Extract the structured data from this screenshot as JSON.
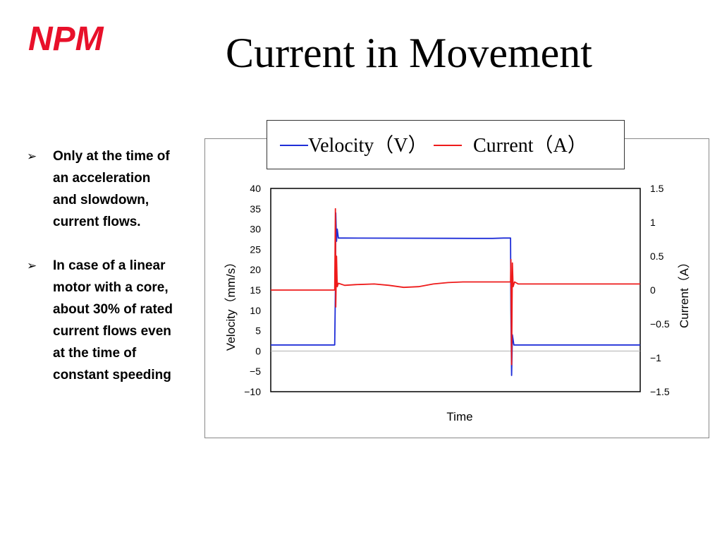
{
  "slide": {
    "logo": "NPM",
    "title": "Current in Movement",
    "bullets": [
      {
        "marker": "➢",
        "lines": [
          "Only at the time of",
          "an acceleration",
          "and slowdown,",
          "current flows."
        ]
      },
      {
        "marker": "➢",
        "lines": [
          "In case of a linear",
          "motor with a core,",
          "about 30% of rated",
          "current flows even",
          "at the time of",
          "constant speeding"
        ]
      }
    ]
  },
  "colors": {
    "logo": "#e8102a",
    "velocity": "#1f2ed8",
    "current": "#ee1b1b",
    "zero_line": "#b0b0b0"
  },
  "chart_data": {
    "type": "line",
    "xlabel": "Time",
    "ylabel": "Velocity（mm/s）",
    "y2label": "Current（A）",
    "ylim": [
      -10,
      40
    ],
    "y2lim": [
      -1.5,
      1.5
    ],
    "yticks": [
      "40",
      "35",
      "30",
      "25",
      "20",
      "15",
      "10",
      "5",
      "0",
      "−5",
      "−10"
    ],
    "y2ticks": [
      "1.5",
      "1",
      "0.5",
      "0",
      "−0.5",
      "−1",
      "−1.5"
    ],
    "xlim": [
      0,
      100
    ],
    "grid": false,
    "legend": "top",
    "series": [
      {
        "name": "Velocity（V）",
        "axis": "left",
        "color": "#1f2ed8",
        "x": [
          0,
          17.3,
          17.5,
          17.6,
          17.8,
          18.0,
          18.3,
          20,
          55,
          60,
          63,
          64.9,
          65.0,
          65.2,
          65.4,
          65.8,
          70,
          80,
          100
        ],
        "y": [
          1.5,
          1.5,
          15,
          34,
          27,
          30,
          27.8,
          27.8,
          27.7,
          27.7,
          27.8,
          27.8,
          10,
          -6,
          4,
          1.5,
          1.5,
          1.5,
          1.5
        ]
      },
      {
        "name": "Current（A）",
        "axis": "right",
        "color": "#ee1b1b",
        "x": [
          0,
          17.0,
          17.3,
          17.5,
          17.6,
          17.8,
          18.0,
          18.3,
          20,
          23,
          28,
          32,
          36,
          40,
          44,
          48,
          52,
          56,
          60,
          63,
          64.9,
          65.0,
          65.2,
          65.4,
          65.6,
          66,
          67,
          75,
          85,
          100
        ],
        "y": [
          0.0,
          0.0,
          0.0,
          1.2,
          -0.25,
          0.5,
          0.05,
          0.1,
          0.07,
          0.08,
          0.09,
          0.07,
          0.04,
          0.05,
          0.09,
          0.11,
          0.12,
          0.12,
          0.12,
          0.12,
          0.12,
          0.45,
          -1.1,
          0.4,
          0.05,
          0.12,
          0.09,
          0.09,
          0.09,
          0.09
        ]
      }
    ]
  }
}
